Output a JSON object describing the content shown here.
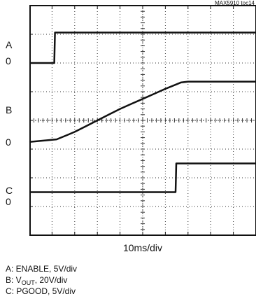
{
  "figure_id": "MAX5910 toc14",
  "chart_data": {
    "type": "line",
    "title": "",
    "xlabel": "10ms/div",
    "ylabel": "",
    "x_unit": "ms",
    "x_per_div": 10,
    "x_divisions": 10,
    "y_divisions": 8,
    "grid": true,
    "series": [
      {
        "name": "A: ENABLE, 5V/div",
        "channel": "A",
        "signal": "ENABLE",
        "unit_label": "5V/div",
        "volts_per_div": 5,
        "zero_label": "0",
        "zero_div_from_top": 2.0,
        "x": [
          0,
          11,
          11.3,
          100
        ],
        "y": [
          0,
          0,
          5.3,
          5.3
        ]
      },
      {
        "name": "B: VOUT, 20V/div",
        "channel": "B",
        "signal": "V",
        "signal_sub": "OUT",
        "unit_label": "20V/div",
        "volts_per_div": 20,
        "zero_label": "0",
        "zero_div_from_top": 4.75,
        "x": [
          0,
          12,
          17,
          20,
          25,
          30,
          35,
          40,
          45,
          50,
          55,
          60,
          67,
          70,
          100
        ],
        "y": [
          0,
          1.8,
          5,
          7,
          11,
          15,
          19,
          23,
          26.5,
          30,
          33.5,
          37,
          41.5,
          42,
          42
        ]
      },
      {
        "name": "C: PGOOD, 5V/div",
        "channel": "C",
        "signal": "PGOOD",
        "unit_label": "5V/div",
        "volts_per_div": 5,
        "zero_label": "0",
        "zero_div_from_top": 6.5,
        "x": [
          0,
          64.5,
          64.8,
          100
        ],
        "y": [
          0,
          0,
          5,
          5
        ]
      }
    ],
    "channel_markers": [
      "A",
      "B",
      "C"
    ]
  },
  "colors": {
    "background": "#ffffff",
    "trace": "#111111",
    "grid": "#333333",
    "frame": "#111111"
  }
}
